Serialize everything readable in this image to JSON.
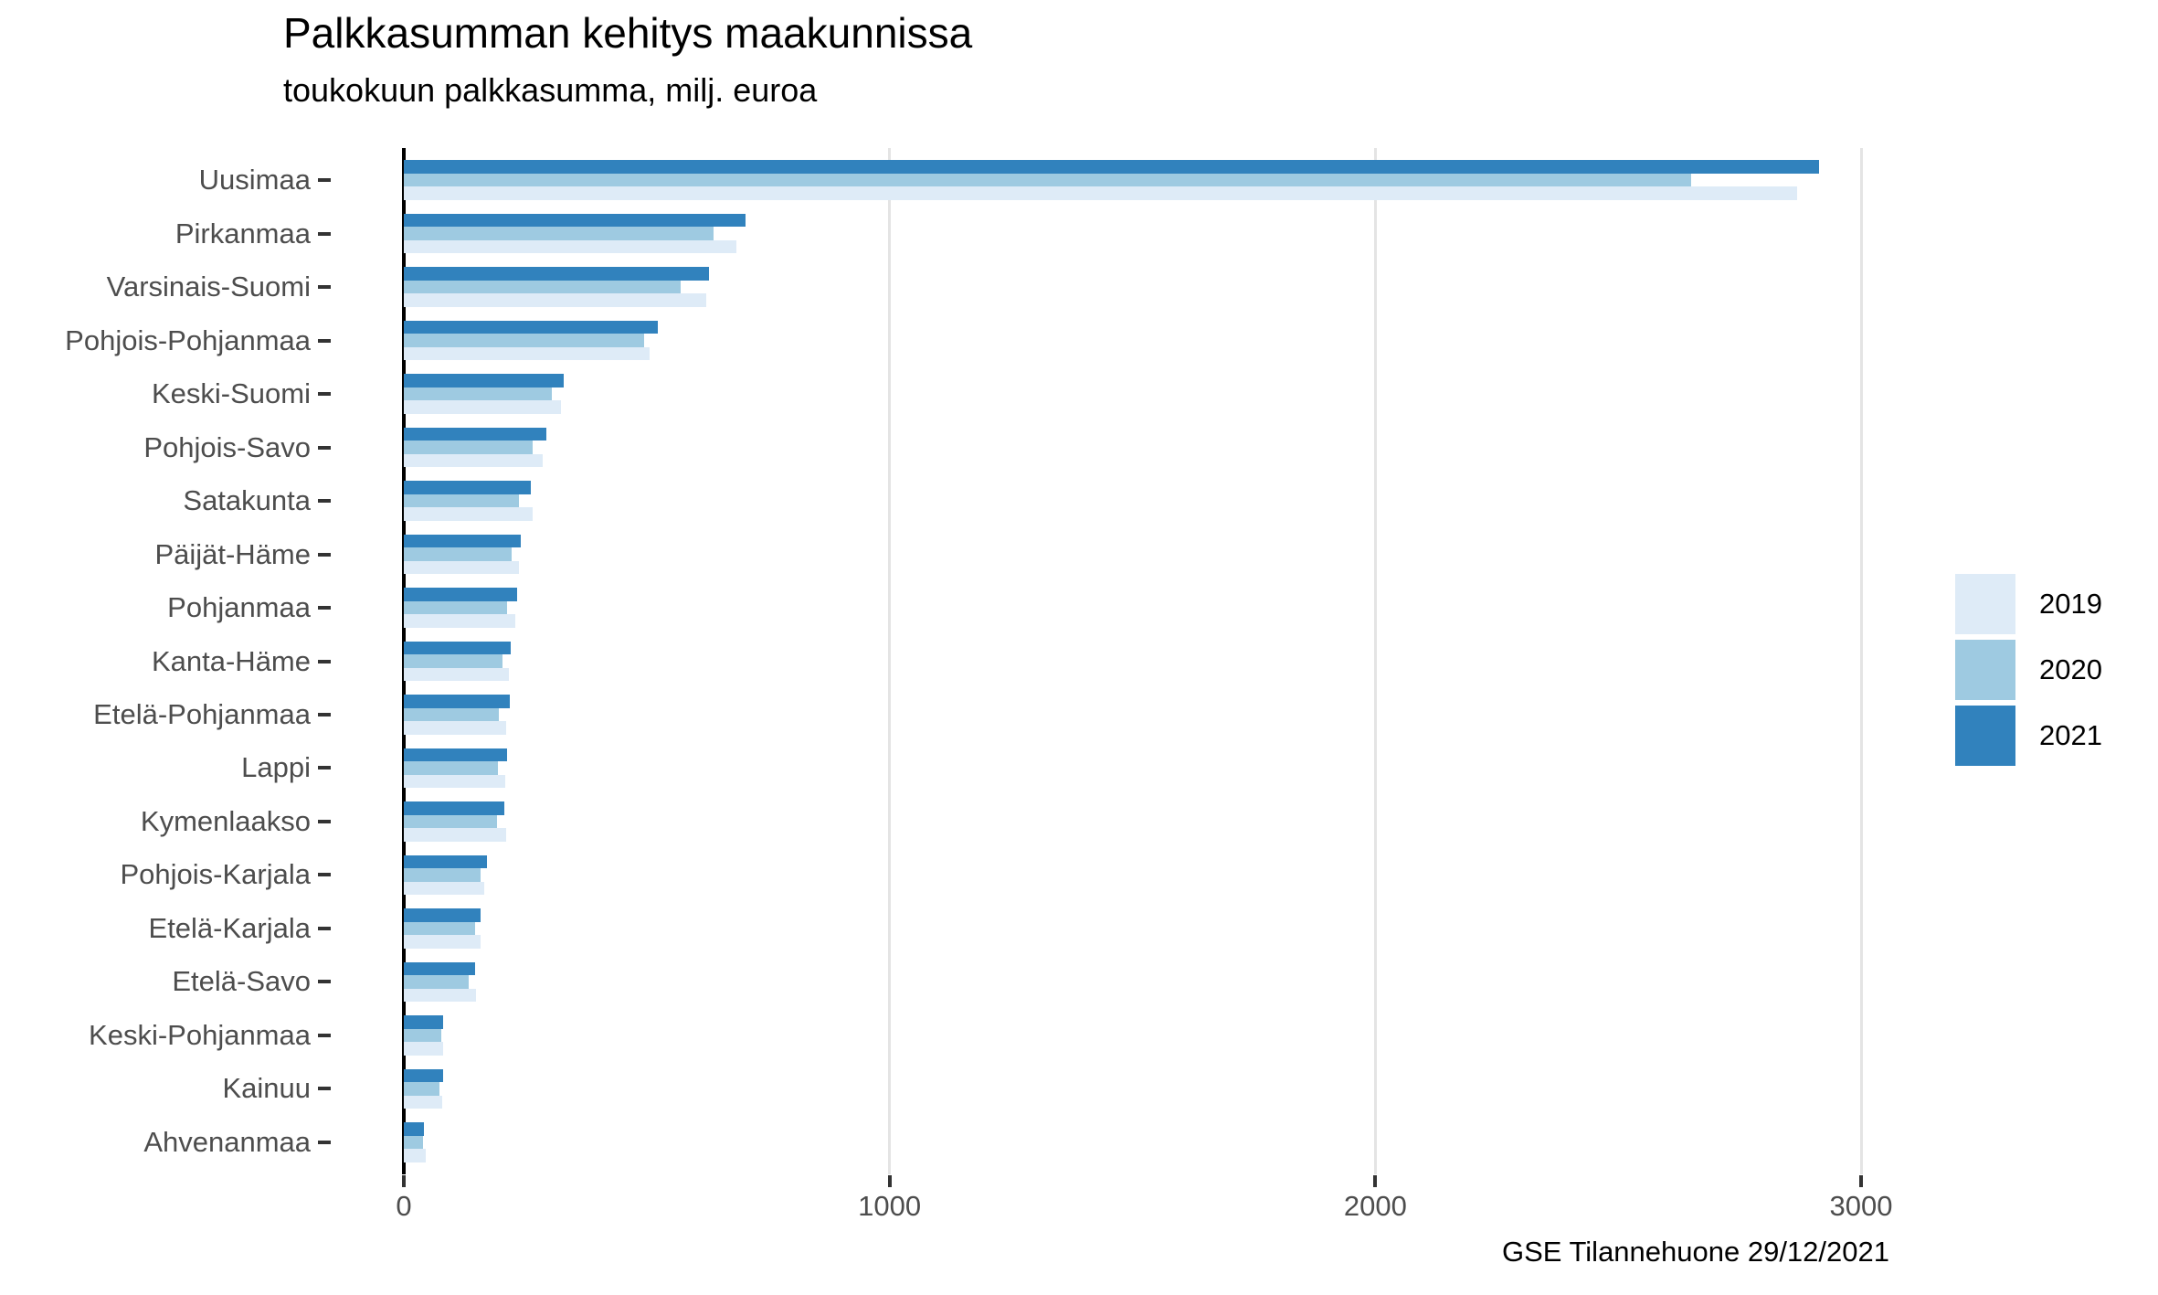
{
  "title": "Palkkasumman kehitys maakunnissa",
  "subtitle": "toukokuun palkkasumma, milj. euroa",
  "caption": "GSE Tilannehuone 29/12/2021",
  "legend": {
    "items": [
      {
        "label": "2019",
        "color": "#deebf7"
      },
      {
        "label": "2020",
        "color": "#9ecae1"
      },
      {
        "label": "2021",
        "color": "#3182bd"
      }
    ]
  },
  "colors": {
    "gridline": "#e4e4e4",
    "zero_line": "#000000",
    "axis_text": "#4d4d4d",
    "tick": "#333333"
  },
  "chart_data": {
    "type": "bar",
    "orientation": "horizontal",
    "title": "Palkkasumman kehitys maakunnissa",
    "subtitle": "toukokuun palkkasumma, milj. euroa",
    "xlabel": "",
    "ylabel": "",
    "grid": "vertical-major-only",
    "legend_position": "right",
    "x_ticks": [
      0,
      1000,
      2000,
      3000
    ],
    "xlim": [
      0,
      3058
    ],
    "categories": [
      "Uusimaa",
      "Pirkanmaa",
      "Varsinais-Suomi",
      "Pohjois-Pohjanmaa",
      "Keski-Suomi",
      "Pohjois-Savo",
      "Satakunta",
      "Päijät-Häme",
      "Pohjanmaa",
      "Kanta-Häme",
      "Etelä-Pohjanmaa",
      "Lappi",
      "Kymenlaakso",
      "Pohjois-Karjala",
      "Etelä-Karjala",
      "Etelä-Savo",
      "Keski-Pohjanmaa",
      "Kainuu",
      "Ahvenanmaa"
    ],
    "bar_order_top_to_bottom": [
      "2021",
      "2020",
      "2019"
    ],
    "series": [
      {
        "name": "2019",
        "color": "#deebf7",
        "values": [
          2868,
          685,
          623,
          506,
          323,
          286,
          265,
          237,
          229,
          216,
          211,
          209,
          211,
          166,
          158,
          149,
          81,
          79,
          45
        ]
      },
      {
        "name": "2020",
        "color": "#9ecae1",
        "values": [
          2650,
          638,
          570,
          495,
          305,
          265,
          237,
          222,
          213,
          203,
          196,
          194,
          192,
          158,
          147,
          134,
          77,
          73,
          39
        ]
      },
      {
        "name": "2021",
        "color": "#3182bd",
        "values": [
          2913,
          703,
          628,
          523,
          329,
          293,
          261,
          240,
          233,
          220,
          218,
          213,
          207,
          171,
          158,
          147,
          81,
          81,
          41
        ]
      }
    ]
  }
}
